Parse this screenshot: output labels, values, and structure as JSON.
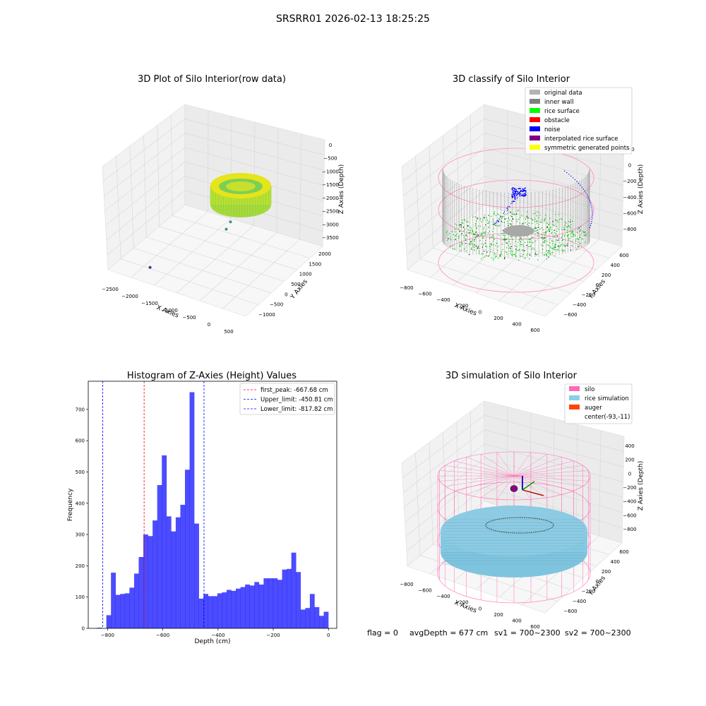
{
  "figure": {
    "suptitle": "SRSRR01 2026-02-13 18:25:25",
    "footer": {
      "flag": "flag = 0",
      "avg_depth": "avgDepth = 677 cm",
      "sv1": "sv1 = 700~2300",
      "sv2": "sv2 = 700~2300"
    }
  },
  "chart_data": [
    {
      "type": "scatter",
      "title": "3D Plot of Silo Interior(row data)",
      "xlabel": "X Axies",
      "ylabel": "Y Axies",
      "zlabel": "Z Axies (Depth)",
      "x_ticks": [
        "−2500",
        "−2000",
        "−1500",
        "−1000",
        "−500",
        "0",
        "500"
      ],
      "y_ticks": [
        "−1000",
        "−500",
        "0",
        "500",
        "1000",
        "1500",
        "2000"
      ],
      "z_ticks": [
        "−3500",
        "−3000",
        "−2500",
        "−2000",
        "−1500",
        "−1000",
        "−500",
        "0"
      ],
      "outlier_points": [
        {
          "x": -150,
          "y": 600,
          "z": -700
        },
        {
          "x": -350,
          "y": 700,
          "z": -1100
        },
        {
          "x": -450,
          "y": 800,
          "z": -1300
        },
        {
          "x": -500,
          "y": 750,
          "z": -1600
        },
        {
          "x": -420,
          "y": 650,
          "z": -1900
        },
        {
          "x": -550,
          "y": 500,
          "z": -2100
        },
        {
          "x": -600,
          "y": 400,
          "z": -2300
        },
        {
          "x": -1800,
          "y": -900,
          "z": -3200
        }
      ],
      "colors": {
        "low": "#3b528b",
        "mid": "#5ec962",
        "high": "#fde725"
      }
    },
    {
      "type": "scatter",
      "title": "3D classify of Silo Interior",
      "xlabel": "X Axies",
      "ylabel": "Y Axies",
      "zlabel": "Z Axies (Depth)",
      "x_ticks": [
        "−800",
        "−600",
        "−400",
        "−200",
        "0",
        "200",
        "400",
        "600"
      ],
      "y_ticks": [
        "−600",
        "−400",
        "−200",
        "0",
        "200",
        "400",
        "600"
      ],
      "z_ticks": [
        "−800",
        "−600",
        "−400",
        "−200",
        "0",
        "200"
      ],
      "legend": [
        {
          "label": "original data",
          "color": "#b3b3b3"
        },
        {
          "label": "inner wall",
          "color": "#808080"
        },
        {
          "label": "rice surface",
          "color": "#00ff00"
        },
        {
          "label": "obstacle",
          "color": "#ff0000"
        },
        {
          "label": "noise",
          "color": "#0000ff"
        },
        {
          "label": "interpolated rice surface",
          "color": "#800080"
        },
        {
          "label": "symmetric generated points",
          "color": "#ffff00"
        }
      ],
      "legend_position": "upper-right"
    },
    {
      "type": "bar",
      "title": "Histogram of Z-Axies (Height) Values",
      "xlabel": "Depth (cm)",
      "ylabel": "Frequency",
      "xlim": [
        -870,
        30
      ],
      "ylim": [
        0,
        790
      ],
      "x_ticks": [
        -800,
        -600,
        -400,
        -200,
        0
      ],
      "x_tick_labels": [
        "−800",
        "−600",
        "−400",
        "−200",
        "0"
      ],
      "y_ticks": [
        0,
        100,
        200,
        300,
        400,
        500,
        600,
        700
      ],
      "bin_start": -838,
      "bin_width": 16.75,
      "values": [
        2,
        0,
        42,
        178,
        107,
        110,
        112,
        130,
        175,
        228,
        300,
        295,
        345,
        458,
        553,
        358,
        310,
        355,
        395,
        507,
        755,
        335,
        95,
        110,
        103,
        103,
        112,
        115,
        123,
        120,
        127,
        132,
        140,
        137,
        148,
        140,
        160,
        160,
        160,
        155,
        188,
        190,
        242,
        180,
        60,
        65,
        110,
        68,
        40,
        53
      ],
      "bar_color": "#0000ff",
      "bar_alpha": 0.7,
      "vlines": [
        {
          "x": -667.68,
          "color": "#ff0000",
          "label": "first_peak: -667.68 cm"
        },
        {
          "x": -450.81,
          "color": "#0000ff",
          "label": "Upper_limit: -450.81 cm"
        },
        {
          "x": -817.82,
          "color": "#0000ff",
          "label": "Lower_limit: -817.82 cm"
        }
      ],
      "legend_position": "upper-right"
    },
    {
      "type": "scatter",
      "title": "3D simulation of Silo Interior",
      "xlabel": "X Axies",
      "ylabel": "Y Axies",
      "zlabel": "Z Axies (Depth)",
      "x_ticks": [
        "−800",
        "−600",
        "−400",
        "−200",
        "0",
        "200",
        "400",
        "600"
      ],
      "y_ticks": [
        "−600",
        "−400",
        "−200",
        "0",
        "200",
        "400",
        "600"
      ],
      "z_ticks": [
        "−800",
        "−600",
        "−400",
        "−200",
        "0",
        "200",
        "400"
      ],
      "legend": [
        {
          "label": "silo",
          "color": "#ff69b4"
        },
        {
          "label": "rice simulation",
          "color": "#87ceeb"
        },
        {
          "label": "auger",
          "color": "#ff4500"
        },
        {
          "label": "center(-93,-11)",
          "color": ""
        }
      ],
      "legend_position": "upper-right"
    }
  ]
}
